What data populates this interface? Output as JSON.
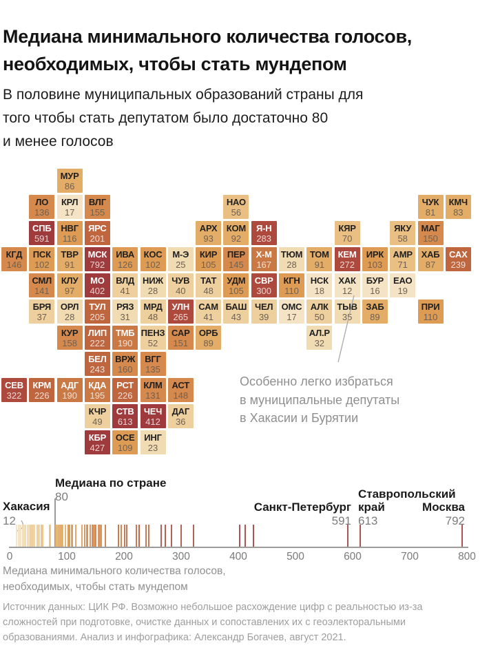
{
  "header": {
    "title": "Медиана минимального количества голосов,\nнеобходимых, чтобы стать мундепом",
    "subtitle": "В половине муниципальных образований страны для\nтого чтобы стать депутатом было достаточно 80\nи менее голосов"
  },
  "map_annotation": {
    "text": "Особенно легко избраться\nв муниципальные депутаты\nв Хакасии и Бурятии"
  },
  "color_scale": {
    "buckets": [
      {
        "max": 20,
        "bg": "#f4e4c5",
        "dark_tile": false
      },
      {
        "max": 35,
        "bg": "#f1dbb2",
        "dark_tile": false
      },
      {
        "max": 55,
        "bg": "#eecf9e",
        "dark_tile": false
      },
      {
        "max": 75,
        "bg": "#e9bf83",
        "dark_tile": false
      },
      {
        "max": 100,
        "bg": "#e4ad67",
        "dark_tile": false
      },
      {
        "max": 130,
        "bg": "#de9b54",
        "dark_tile": false
      },
      {
        "max": 165,
        "bg": "#d5894d",
        "dark_tile": false
      },
      {
        "max": 200,
        "bg": "#ca7844",
        "dark_tile": true
      },
      {
        "max": 250,
        "bg": "#c0663f",
        "dark_tile": true
      },
      {
        "max": 330,
        "bg": "#ae4a3d",
        "dark_tile": true
      },
      {
        "max": 9999,
        "bg": "#a03b3d",
        "dark_tile": true
      }
    ],
    "label_on_light": "#1f1f1f",
    "label_on_dark": "#ffffff",
    "value_on_light": "#6e6152",
    "value_on_dark": "rgba(255,255,255,0.78)"
  },
  "chart_data": {
    "type": "tile-cartogram-with-strip-plot",
    "regions": [
      {
        "code": "МУР",
        "value": 86,
        "col": 3,
        "row": 1
      },
      {
        "code": "ЛО",
        "value": 136,
        "col": 2,
        "row": 2
      },
      {
        "code": "КРЛ",
        "value": 17,
        "col": 3,
        "row": 2
      },
      {
        "code": "ВЛГ",
        "value": 155,
        "col": 4,
        "row": 2
      },
      {
        "code": "НАО",
        "value": 56,
        "col": 9,
        "row": 2
      },
      {
        "code": "ЧУК",
        "value": 81,
        "col": 16,
        "row": 2
      },
      {
        "code": "КМЧ",
        "value": 83,
        "col": 17,
        "row": 2
      },
      {
        "code": "СПБ",
        "value": 591,
        "col": 2,
        "row": 3
      },
      {
        "code": "НВГ",
        "value": 116,
        "col": 3,
        "row": 3
      },
      {
        "code": "ЯРС",
        "value": 201,
        "col": 4,
        "row": 3
      },
      {
        "code": "АРХ",
        "value": 93,
        "col": 8,
        "row": 3
      },
      {
        "code": "КОМ",
        "value": 92,
        "col": 9,
        "row": 3
      },
      {
        "code": "Я-Н",
        "value": 283,
        "col": 10,
        "row": 3
      },
      {
        "code": "КЯР",
        "value": 70,
        "col": 13,
        "row": 3
      },
      {
        "code": "ЯКУ",
        "value": 58,
        "col": 15,
        "row": 3
      },
      {
        "code": "МАГ",
        "value": 150,
        "col": 16,
        "row": 3
      },
      {
        "code": "КГД",
        "value": 146,
        "col": 1,
        "row": 4
      },
      {
        "code": "ПСК",
        "value": 102,
        "col": 2,
        "row": 4
      },
      {
        "code": "ТВР",
        "value": 91,
        "col": 3,
        "row": 4
      },
      {
        "code": "МСК",
        "value": 792,
        "col": 4,
        "row": 4
      },
      {
        "code": "ИВА",
        "value": 126,
        "col": 5,
        "row": 4
      },
      {
        "code": "КОС",
        "value": 102,
        "col": 6,
        "row": 4
      },
      {
        "code": "М-Э",
        "value": 25,
        "col": 7,
        "row": 4
      },
      {
        "code": "КИР",
        "value": 105,
        "col": 8,
        "row": 4
      },
      {
        "code": "ПЕР",
        "value": 145,
        "col": 9,
        "row": 4
      },
      {
        "code": "Х-М",
        "value": 167,
        "col": 10,
        "row": 4
      },
      {
        "code": "ТЮМ",
        "value": 28,
        "col": 11,
        "row": 4
      },
      {
        "code": "ТОМ",
        "value": 91,
        "col": 12,
        "row": 4
      },
      {
        "code": "КЕМ",
        "value": 272,
        "col": 13,
        "row": 4
      },
      {
        "code": "ИРК",
        "value": 103,
        "col": 14,
        "row": 4
      },
      {
        "code": "АМР",
        "value": 71,
        "col": 15,
        "row": 4
      },
      {
        "code": "ХАБ",
        "value": 87,
        "col": 16,
        "row": 4
      },
      {
        "code": "САХ",
        "value": 239,
        "col": 17,
        "row": 4
      },
      {
        "code": "СМЛ",
        "value": 141,
        "col": 2,
        "row": 5
      },
      {
        "code": "КЛУ",
        "value": 97,
        "col": 3,
        "row": 5
      },
      {
        "code": "МО",
        "value": 402,
        "col": 4,
        "row": 5
      },
      {
        "code": "ВЛД",
        "value": 41,
        "col": 5,
        "row": 5
      },
      {
        "code": "НИЖ",
        "value": 28,
        "col": 6,
        "row": 5
      },
      {
        "code": "ЧУВ",
        "value": 40,
        "col": 7,
        "row": 5
      },
      {
        "code": "ТАТ",
        "value": 48,
        "col": 8,
        "row": 5
      },
      {
        "code": "УДМ",
        "value": 105,
        "col": 9,
        "row": 5
      },
      {
        "code": "СВР",
        "value": 300,
        "col": 10,
        "row": 5
      },
      {
        "code": "КГН",
        "value": 110,
        "col": 11,
        "row": 5
      },
      {
        "code": "НСК",
        "value": 18,
        "col": 12,
        "row": 5
      },
      {
        "code": "ХАК",
        "value": 12,
        "col": 13,
        "row": 5
      },
      {
        "code": "БУР",
        "value": 16,
        "col": 14,
        "row": 5
      },
      {
        "code": "ЕАО",
        "value": 19,
        "col": 15,
        "row": 5
      },
      {
        "code": "БРЯ",
        "value": 37,
        "col": 2,
        "row": 6
      },
      {
        "code": "ОРЛ",
        "value": 28,
        "col": 3,
        "row": 6
      },
      {
        "code": "ТУЛ",
        "value": 205,
        "col": 4,
        "row": 6
      },
      {
        "code": "РЯЗ",
        "value": 31,
        "col": 5,
        "row": 6
      },
      {
        "code": "МРД",
        "value": 48,
        "col": 6,
        "row": 6
      },
      {
        "code": "УЛН",
        "value": 265,
        "col": 7,
        "row": 6
      },
      {
        "code": "САМ",
        "value": 41,
        "col": 8,
        "row": 6
      },
      {
        "code": "БАШ",
        "value": 43,
        "col": 9,
        "row": 6
      },
      {
        "code": "ЧЕЛ",
        "value": 39,
        "col": 10,
        "row": 6
      },
      {
        "code": "ОМС",
        "value": 17,
        "col": 11,
        "row": 6
      },
      {
        "code": "АЛК",
        "value": 50,
        "col": 12,
        "row": 6
      },
      {
        "code": "ТЫВ",
        "value": 35,
        "col": 13,
        "row": 6
      },
      {
        "code": "ЗАБ",
        "value": 89,
        "col": 14,
        "row": 6
      },
      {
        "code": "ПРИ",
        "value": 110,
        "col": 16,
        "row": 6
      },
      {
        "code": "КУР",
        "value": 158,
        "col": 3,
        "row": 7
      },
      {
        "code": "ЛИП",
        "value": 222,
        "col": 4,
        "row": 7
      },
      {
        "code": "ТМБ",
        "value": 190,
        "col": 5,
        "row": 7
      },
      {
        "code": "ПЕНЗ",
        "value": 52,
        "col": 6,
        "row": 7
      },
      {
        "code": "САР",
        "value": 151,
        "col": 7,
        "row": 7
      },
      {
        "code": "ОРБ",
        "value": 89,
        "col": 8,
        "row": 7
      },
      {
        "code": "АЛ.Р",
        "value": 32,
        "col": 12,
        "row": 7
      },
      {
        "code": "БЕЛ",
        "value": 243,
        "col": 4,
        "row": 8
      },
      {
        "code": "ВРЖ",
        "value": 160,
        "col": 5,
        "row": 8
      },
      {
        "code": "ВГГ",
        "value": 135,
        "col": 6,
        "row": 8
      },
      {
        "code": "СЕВ",
        "value": 322,
        "col": 1,
        "row": 9
      },
      {
        "code": "КРМ",
        "value": 226,
        "col": 2,
        "row": 9
      },
      {
        "code": "АДГ",
        "value": 190,
        "col": 3,
        "row": 9
      },
      {
        "code": "КДА",
        "value": 195,
        "col": 4,
        "row": 9
      },
      {
        "code": "РСТ",
        "value": 226,
        "col": 5,
        "row": 9
      },
      {
        "code": "КЛМ",
        "value": 131,
        "col": 6,
        "row": 9
      },
      {
        "code": "АСТ",
        "value": 148,
        "col": 7,
        "row": 9
      },
      {
        "code": "КЧР",
        "value": 49,
        "col": 4,
        "row": 10
      },
      {
        "code": "СТВ",
        "value": 613,
        "col": 5,
        "row": 10
      },
      {
        "code": "ЧЕЧ",
        "value": 412,
        "col": 6,
        "row": 10
      },
      {
        "code": "ДАГ",
        "value": 36,
        "col": 7,
        "row": 10
      },
      {
        "code": "КБР",
        "value": 427,
        "col": 4,
        "row": 11
      },
      {
        "code": "ОСЕ",
        "value": 109,
        "col": 5,
        "row": 11
      },
      {
        "code": "ИНГ",
        "value": 23,
        "col": 6,
        "row": 11
      }
    ],
    "strip": {
      "xlim": [
        0,
        800
      ],
      "ticks": [
        "0",
        "100",
        "200",
        "300",
        "400",
        "500",
        "600",
        "700",
        "800"
      ],
      "median_label": "Медиана по стране",
      "median_value": "80",
      "xlabel": "Медиана минимального количества голосов,\nнеобходимых, чтобы стать мундепом",
      "annotations": [
        {
          "name": "Хакасия",
          "value": "12"
        },
        {
          "name": "Санкт-Петербург",
          "value": "591"
        },
        {
          "name": "Ставропольский\nкрай",
          "value": "613"
        },
        {
          "name": "Москва",
          "value": "792"
        }
      ]
    }
  },
  "footer": {
    "source": "Источник данных: ЦИК РФ. Возможно небольшое расхождение цифр с реальностью из-за\nсложностей при подготовке, очистке данных и сопоставлених их с геоэлекторальными\nобразованиями. Анализ и инфографика: Александр Богачев, август 2021."
  }
}
